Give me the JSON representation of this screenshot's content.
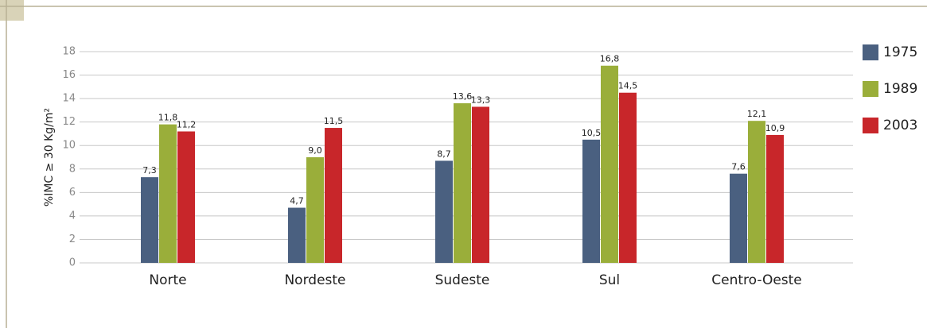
{
  "chart_data": {
    "type": "bar",
    "y_label": "%IMC ≥ 30 Kg/m²",
    "categories": [
      "Norte",
      "Nordeste",
      "Sudeste",
      "Sul",
      "Centro-Oeste"
    ],
    "series": [
      {
        "name": "1975",
        "color": "#4a6080",
        "values": [
          7.3,
          4.7,
          8.7,
          10.5,
          7.6
        ],
        "value_labels": [
          "7,3",
          "4,7",
          "8,7",
          "10,5",
          "7,6"
        ]
      },
      {
        "name": "1989",
        "color": "#9aae3a",
        "values": [
          11.8,
          9.0,
          13.6,
          16.8,
          12.1
        ],
        "value_labels": [
          "11,8",
          "9,0",
          "13,6",
          "16,8",
          "12,1"
        ]
      },
      {
        "name": "2003",
        "color": "#c8262a",
        "values": [
          11.2,
          11.5,
          13.3,
          14.5,
          10.9
        ],
        "value_labels": [
          "11,2",
          "11,5",
          "13,3",
          "14,5",
          "10,9"
        ]
      }
    ],
    "ylim": [
      0,
      18
    ],
    "yticks": [
      0,
      2,
      4,
      6,
      8,
      10,
      12,
      14,
      16,
      18
    ],
    "grid": true,
    "legend": "right"
  }
}
